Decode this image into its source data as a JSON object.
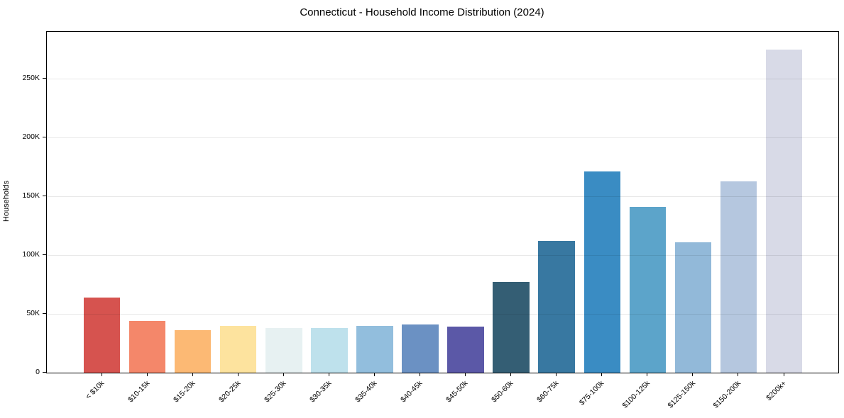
{
  "chart_data": {
    "type": "bar",
    "title": "Connecticut - Household Income Distribution (2024)",
    "xlabel": "",
    "ylabel": "Households",
    "categories": [
      "< $10k",
      "$10-15k",
      "$15-20k",
      "$20-25k",
      "$25-30k",
      "$30-35k",
      "$35-40k",
      "$40-45k",
      "$45-50k",
      "$50-60k",
      "$60-75k",
      "$75-100k",
      "$100-125k",
      "$125-150k",
      "$150-200k",
      "$200k+"
    ],
    "values": [
      64000,
      44000,
      36000,
      40000,
      38000,
      38000,
      40000,
      41000,
      39000,
      77000,
      112000,
      171000,
      141000,
      111000,
      163000,
      275000
    ],
    "bar_colors": [
      "#d6534f",
      "#f4876a",
      "#fcb974",
      "#fde39e",
      "#e7f1f2",
      "#bee1ec",
      "#92bedd",
      "#6b91c3",
      "#5b58a7",
      "#345e74",
      "#3878a1",
      "#3a8cc3",
      "#5ca4ca",
      "#92b9d9",
      "#b5c7df",
      "#d8dae7"
    ],
    "ylim": [
      0,
      290000
    ],
    "yticks": {
      "values": [
        0,
        50000,
        100000,
        150000,
        200000,
        250000
      ],
      "labels": [
        "0",
        "50K",
        "100K",
        "150K",
        "200K",
        "250K"
      ]
    },
    "grid": "horizontal",
    "legend": "none",
    "plot_background": "#ffffff"
  }
}
